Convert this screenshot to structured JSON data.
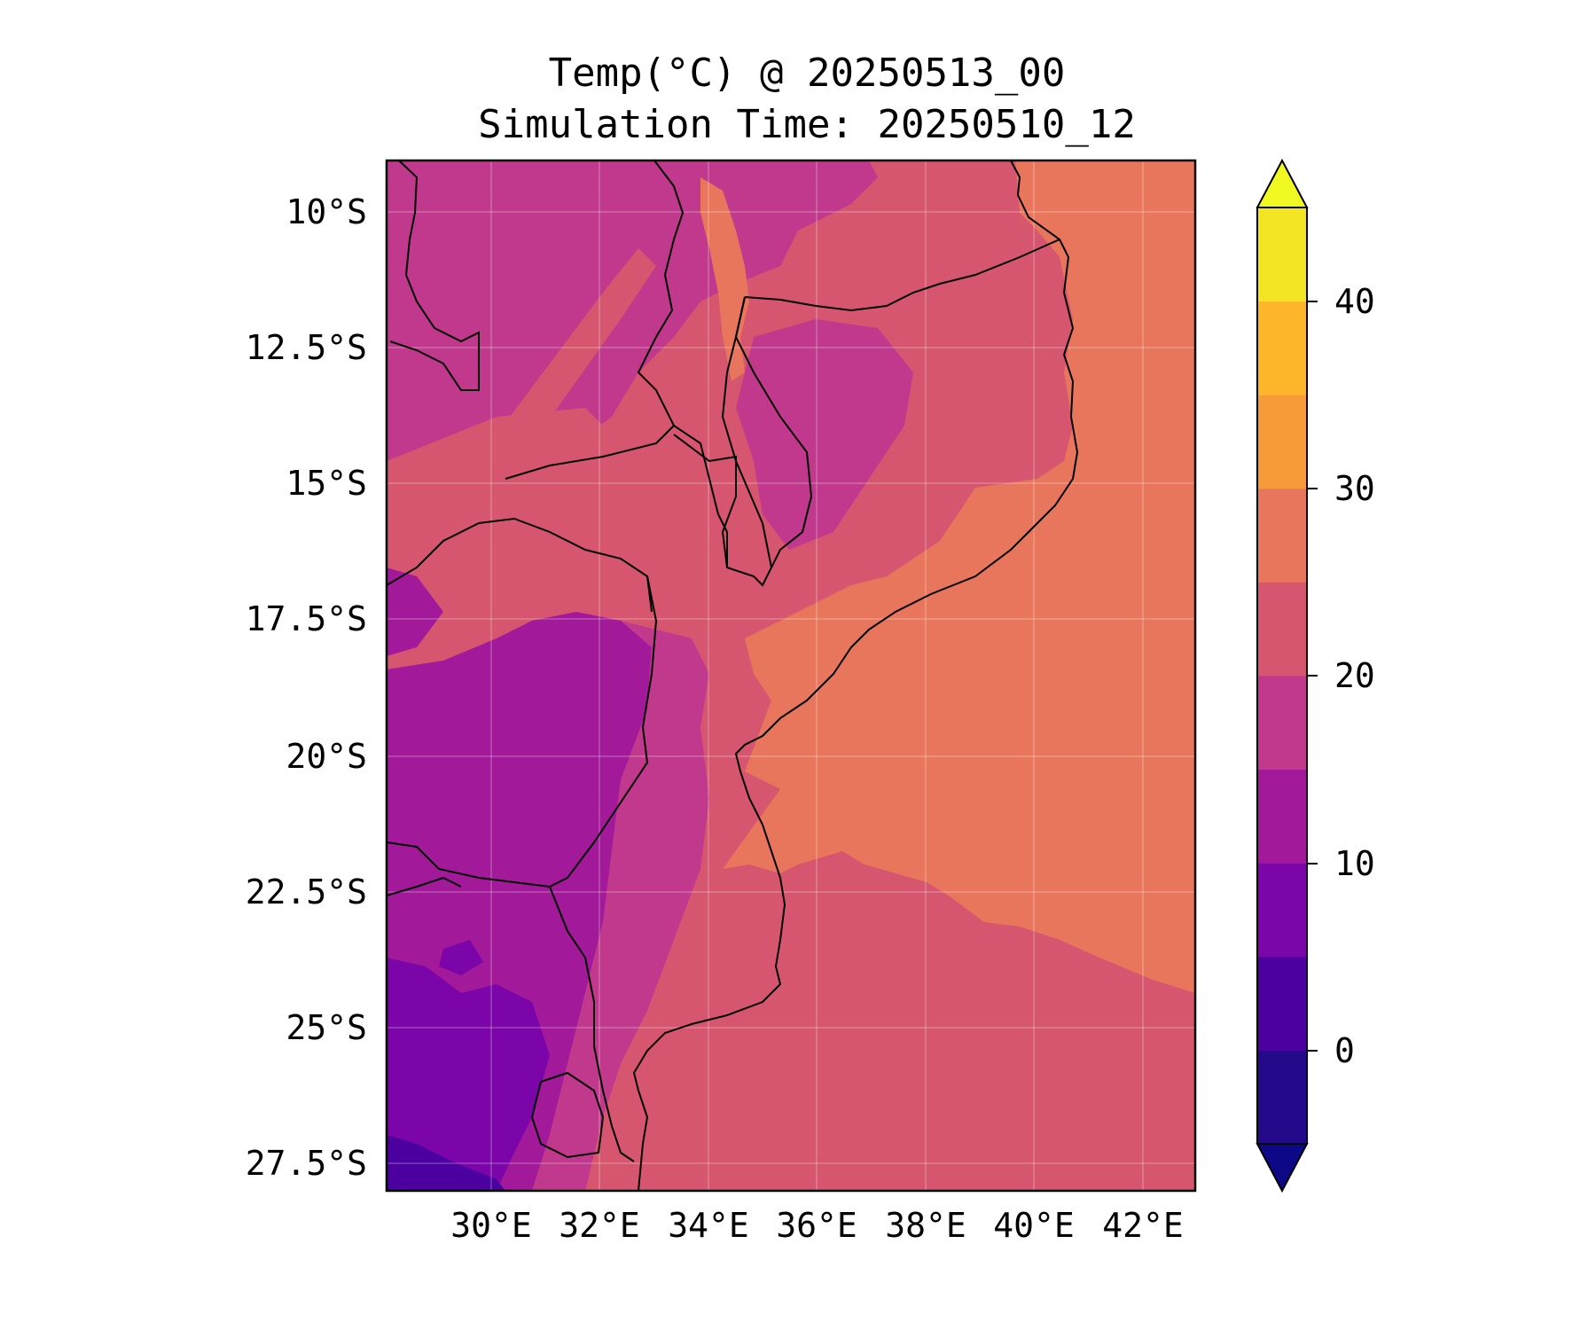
{
  "title": {
    "line1": "Temp(°C) @ 20250513_00",
    "line2": "Simulation Time: 20250510_12"
  },
  "map": {
    "lat_ticks": [
      "10°S",
      "12.5°S",
      "15°S",
      "17.5°S",
      "20°S",
      "22.5°S",
      "25°S",
      "27.5°S"
    ],
    "lon_ticks": [
      "30°E",
      "32°E",
      "34°E",
      "36°E",
      "38°E",
      "40°E",
      "42°E"
    ],
    "extent": {
      "lon_min": 28.0,
      "lon_max": 42.9,
      "lat_min": -28.4,
      "lat_max": -9.4
    },
    "gridlines": true
  },
  "colorbar": {
    "ticks": [
      "0",
      "10",
      "20",
      "30",
      "40"
    ],
    "levels": [
      -5,
      0,
      5,
      10,
      15,
      20,
      25,
      30,
      35,
      40,
      45
    ],
    "band_colors": [
      "#240a8a",
      "#4c00a0",
      "#7b05a8",
      "#a21a9a",
      "#c0398c",
      "#d6566f",
      "#e8765c",
      "#f79a3a",
      "#fdb62a",
      "#f3e524"
    ],
    "extend_low_color": "#0d0887",
    "extend_high_color": "#f0f921",
    "extend": "both"
  },
  "colors": {
    "ocean": "#e8765c",
    "land_warm": "#d6566f",
    "land_mid": "#c0398c",
    "land_cool": "#a21a9a",
    "land_cold": "#7b05a8",
    "borders": "#000000"
  }
}
